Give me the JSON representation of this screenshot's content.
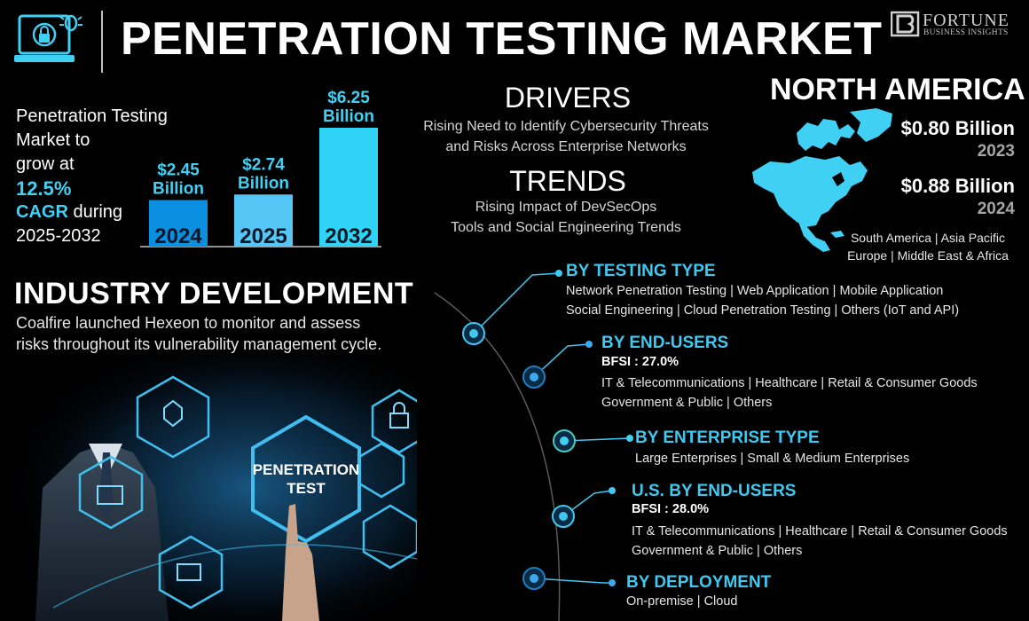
{
  "header": {
    "title": "PENETRATION TESTING MARKET",
    "logo_icon": "laptop-lock-bug-icon",
    "brand_name": "FORTUNE",
    "brand_sub": "BUSINESS INSIGHTS"
  },
  "intro": {
    "line1": "Penetration Testing",
    "line2": "Market to",
    "line3": "grow at",
    "cagr_value": "12.5%",
    "cagr_label": "CAGR",
    "line5": " during",
    "line6": "2025-2032"
  },
  "chart_data": {
    "type": "bar",
    "categories": [
      "2024",
      "2025",
      "2032"
    ],
    "values": [
      2.45,
      2.74,
      6.25
    ],
    "data_labels": [
      [
        "$2.45",
        "Billion"
      ],
      [
        "$2.74",
        "Billion"
      ],
      [
        "$6.25",
        "Billion"
      ]
    ],
    "colors": [
      "#0b8fe0",
      "#56c6f6",
      "#2fd3f6"
    ],
    "title": "",
    "xlabel": "",
    "ylabel": "",
    "grid": false,
    "legend": "none"
  },
  "drivers": {
    "title": "DRIVERS",
    "line1": "Rising Need to Identify Cybersecurity Threats",
    "line2": "and Risks Across Enterprise Networks"
  },
  "trends": {
    "title": "TRENDS",
    "line1": "Rising Impact of DevSecOps",
    "line2": "Tools and Social Engineering Trends"
  },
  "north_america": {
    "title": "NORTH AMERICA",
    "value_1": "$0.80 Billion",
    "year_1": "2023",
    "value_2": "$0.88 Billion",
    "year_2": "2024",
    "regions_line1": "South America  |  Asia Pacific",
    "regions_line2": "Europe  |  Middle East & Africa",
    "map_color": "#3fd0f4"
  },
  "industry": {
    "title": "INDUSTRY DEVELOPMENT",
    "line1": "Coalfire launched Hexeon to monitor and assess",
    "line2": "risks throughout its vulnerability management cycle."
  },
  "illustration": {
    "screen_label_1": "PENETRATION",
    "screen_label_2": "TEST"
  },
  "segments": {
    "testing_type": {
      "title": "BY TESTING TYPE",
      "line1": "Network Penetration Testing  |  Web Application  |  Mobile Application",
      "line2": "Social Engineering  |  Cloud Penetration Testing  |  Others (IoT and API)"
    },
    "end_users": {
      "title": "BY END-USERS",
      "highlight": "BFSI : 27.0%",
      "line1": "IT & Telecommunications  |  Healthcare  |  Retail & Consumer Goods",
      "line2": "Government & Public  |  Others"
    },
    "enterprise_type": {
      "title": "BY ENTERPRISE TYPE",
      "line1": "Large Enterprises  |  Small & Medium Enterprises"
    },
    "us_end_users": {
      "title": "U.S. BY END-USERS",
      "highlight": "BFSI : 28.0%",
      "line1": "IT & Telecommunications  |  Healthcare  |  Retail & Consumer Goods",
      "line2": "Government & Public  |  Others"
    },
    "deployment": {
      "title": "BY DEPLOYMENT",
      "line1": "On-premise  |  Cloud"
    }
  },
  "colors": {
    "accent": "#3fd0f4",
    "segment_title": "#3fc8f0",
    "background": "#000000"
  }
}
